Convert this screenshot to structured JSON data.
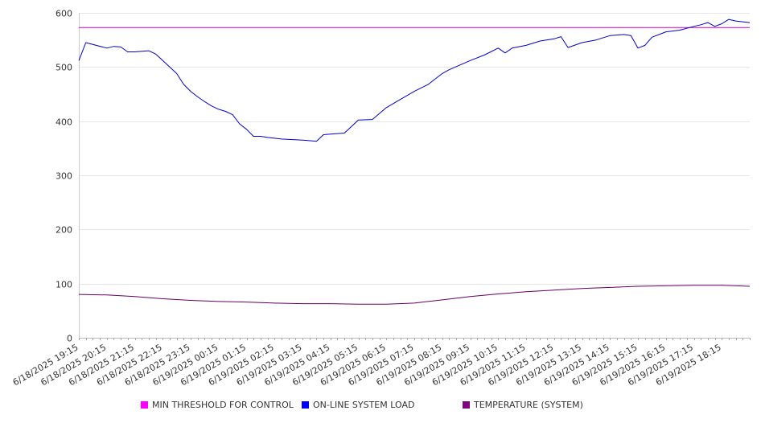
{
  "chart_data": {
    "type": "line",
    "title": "",
    "xlabel": "",
    "ylabel": "",
    "ylim": [
      0,
      600
    ],
    "yticks": [
      0,
      100,
      200,
      300,
      400,
      500,
      600
    ],
    "grid": true,
    "legend_position": "bottom",
    "x_tick_labels": [
      "6/18/2025 19:15",
      "6/18/2025 20:15",
      "6/18/2025 21:15",
      "6/18/2025 22:15",
      "6/18/2025 23:15",
      "6/19/2025 00:15",
      "6/19/2025 01:15",
      "6/19/2025 02:15",
      "6/19/2025 03:15",
      "6/19/2025 04:15",
      "6/19/2025 05:15",
      "6/19/2025 06:15",
      "6/19/2025 07:15",
      "6/19/2025 08:15",
      "6/19/2025 09:15",
      "6/19/2025 10:15",
      "6/19/2025 11:15",
      "6/19/2025 12:15",
      "6/19/2025 13:15",
      "6/19/2025 14:15",
      "6/19/2025 15:15",
      "6/19/2025 16:15",
      "6/19/2025 17:15",
      "6/19/2025 18:15"
    ],
    "x_end": "6/19/2025 19:15",
    "series": [
      {
        "name": "MIN THRESHOLD FOR CONTROL",
        "color": "#cc00cc",
        "legend_color": "#ff00ff",
        "x": [
          "6/18/2025 19:15",
          "6/19/2025 19:15"
        ],
        "values": [
          573,
          573
        ]
      },
      {
        "name": "ON-LINE SYSTEM LOAD",
        "color": "#0000cc",
        "legend_color": "#0000ff",
        "x": [
          "6/18/2025 19:15",
          "6/18/2025 19:30",
          "6/18/2025 20:15",
          "6/18/2025 20:30",
          "6/18/2025 20:45",
          "6/18/2025 21:00",
          "6/18/2025 21:15",
          "6/18/2025 21:45",
          "6/18/2025 22:00",
          "6/18/2025 22:15",
          "6/18/2025 22:30",
          "6/18/2025 22:45",
          "6/18/2025 23:00",
          "6/18/2025 23:15",
          "6/18/2025 23:30",
          "6/18/2025 23:45",
          "6/19/2025 00:00",
          "6/19/2025 00:15",
          "6/19/2025 00:30",
          "6/19/2025 00:45",
          "6/19/2025 01:00",
          "6/19/2025 01:15",
          "6/19/2025 01:30",
          "6/19/2025 01:45",
          "6/19/2025 02:00",
          "6/19/2025 02:30",
          "6/19/2025 03:15",
          "6/19/2025 03:45",
          "6/19/2025 04:00",
          "6/19/2025 04:15",
          "6/19/2025 04:45",
          "6/19/2025 05:15",
          "6/19/2025 05:45",
          "6/19/2025 06:15",
          "6/19/2025 06:45",
          "6/19/2025 07:15",
          "6/19/2025 07:45",
          "6/19/2025 08:15",
          "6/19/2025 08:30",
          "6/19/2025 09:15",
          "6/19/2025 09:45",
          "6/19/2025 10:15",
          "6/19/2025 10:30",
          "6/19/2025 10:45",
          "6/19/2025 11:15",
          "6/19/2025 11:45",
          "6/19/2025 12:15",
          "6/19/2025 12:30",
          "6/19/2025 12:45",
          "6/19/2025 13:15",
          "6/19/2025 13:45",
          "6/19/2025 14:15",
          "6/19/2025 14:45",
          "6/19/2025 15:00",
          "6/19/2025 15:15",
          "6/19/2025 15:30",
          "6/19/2025 15:45",
          "6/19/2025 16:15",
          "6/19/2025 16:45",
          "6/19/2025 17:15",
          "6/19/2025 17:30",
          "6/19/2025 17:45",
          "6/19/2025 18:00",
          "6/19/2025 18:15",
          "6/19/2025 18:30",
          "6/19/2025 18:45",
          "6/19/2025 19:15"
        ],
        "values": [
          512,
          545,
          535,
          538,
          537,
          528,
          528,
          530,
          524,
          512,
          500,
          488,
          468,
          455,
          445,
          436,
          428,
          422,
          418,
          412,
          395,
          385,
          372,
          372,
          370,
          367,
          365,
          363,
          375,
          376,
          378,
          402,
          403,
          425,
          440,
          455,
          468,
          488,
          495,
          512,
          522,
          535,
          526,
          535,
          540,
          548,
          552,
          556,
          536,
          545,
          550,
          558,
          560,
          558,
          535,
          540,
          555,
          565,
          568,
          575,
          578,
          582,
          575,
          580,
          588,
          585,
          582
        ]
      },
      {
        "name": "TEMPERATURE (SYSTEM)",
        "color": "#660066",
        "legend_color": "#800080",
        "x": [
          "6/18/2025 19:15",
          "6/18/2025 20:15",
          "6/18/2025 21:15",
          "6/18/2025 22:15",
          "6/18/2025 23:15",
          "6/19/2025 00:15",
          "6/19/2025 01:15",
          "6/19/2025 02:15",
          "6/19/2025 03:15",
          "6/19/2025 04:15",
          "6/19/2025 05:15",
          "6/19/2025 06:15",
          "6/19/2025 07:15",
          "6/19/2025 08:15",
          "6/19/2025 09:15",
          "6/19/2025 10:15",
          "6/19/2025 11:15",
          "6/19/2025 12:15",
          "6/19/2025 13:15",
          "6/19/2025 14:15",
          "6/19/2025 15:15",
          "6/19/2025 16:15",
          "6/19/2025 17:15",
          "6/19/2025 18:15",
          "6/19/2025 19:15"
        ],
        "values": [
          80,
          79,
          76,
          72,
          69,
          67,
          66,
          64,
          63,
          63,
          62,
          62,
          64,
          70,
          76,
          81,
          85,
          88,
          91,
          93,
          95,
          96,
          97,
          97,
          95
        ]
      }
    ]
  }
}
